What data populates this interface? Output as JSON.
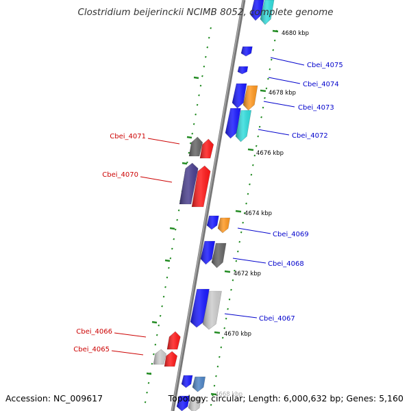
{
  "title": "Clostridium beijerinckii NCIMB 8052, complete genome",
  "footer": {
    "accession": "Accession: NC_009617",
    "topology": "Topology: circular; Length: 6,000,632 bp; Genes: 5,160"
  },
  "kbp_labels": [
    "4680 kbp",
    "4678 kbp",
    "4676 kbp",
    "4674 kbp",
    "4672 kbp",
    "4670 kbp",
    "4668 kbp"
  ],
  "gene_labels": {
    "right": [
      "Cbei_4075",
      "Cbei_4074",
      "Cbei_4073",
      "Cbei_4072",
      "Cbei_4069",
      "Cbei_4068",
      "Cbei_4067"
    ],
    "left": [
      "Cbei_4071",
      "Cbei_4070",
      "Cbei_4066",
      "Cbei_4065"
    ]
  },
  "colors": {
    "forward_label": "#0000cc",
    "reverse_label": "#cc0000",
    "blue": "#1a1aff",
    "red": "#ff1a1a",
    "cyan": "#33dddd",
    "orange": "#ff9922",
    "gray": "#666666",
    "lightgray": "#cccccc",
    "purple": "#4a3f8f",
    "steel": "#4f86c6",
    "ticks": "#228b22",
    "backbone": "#777777"
  }
}
